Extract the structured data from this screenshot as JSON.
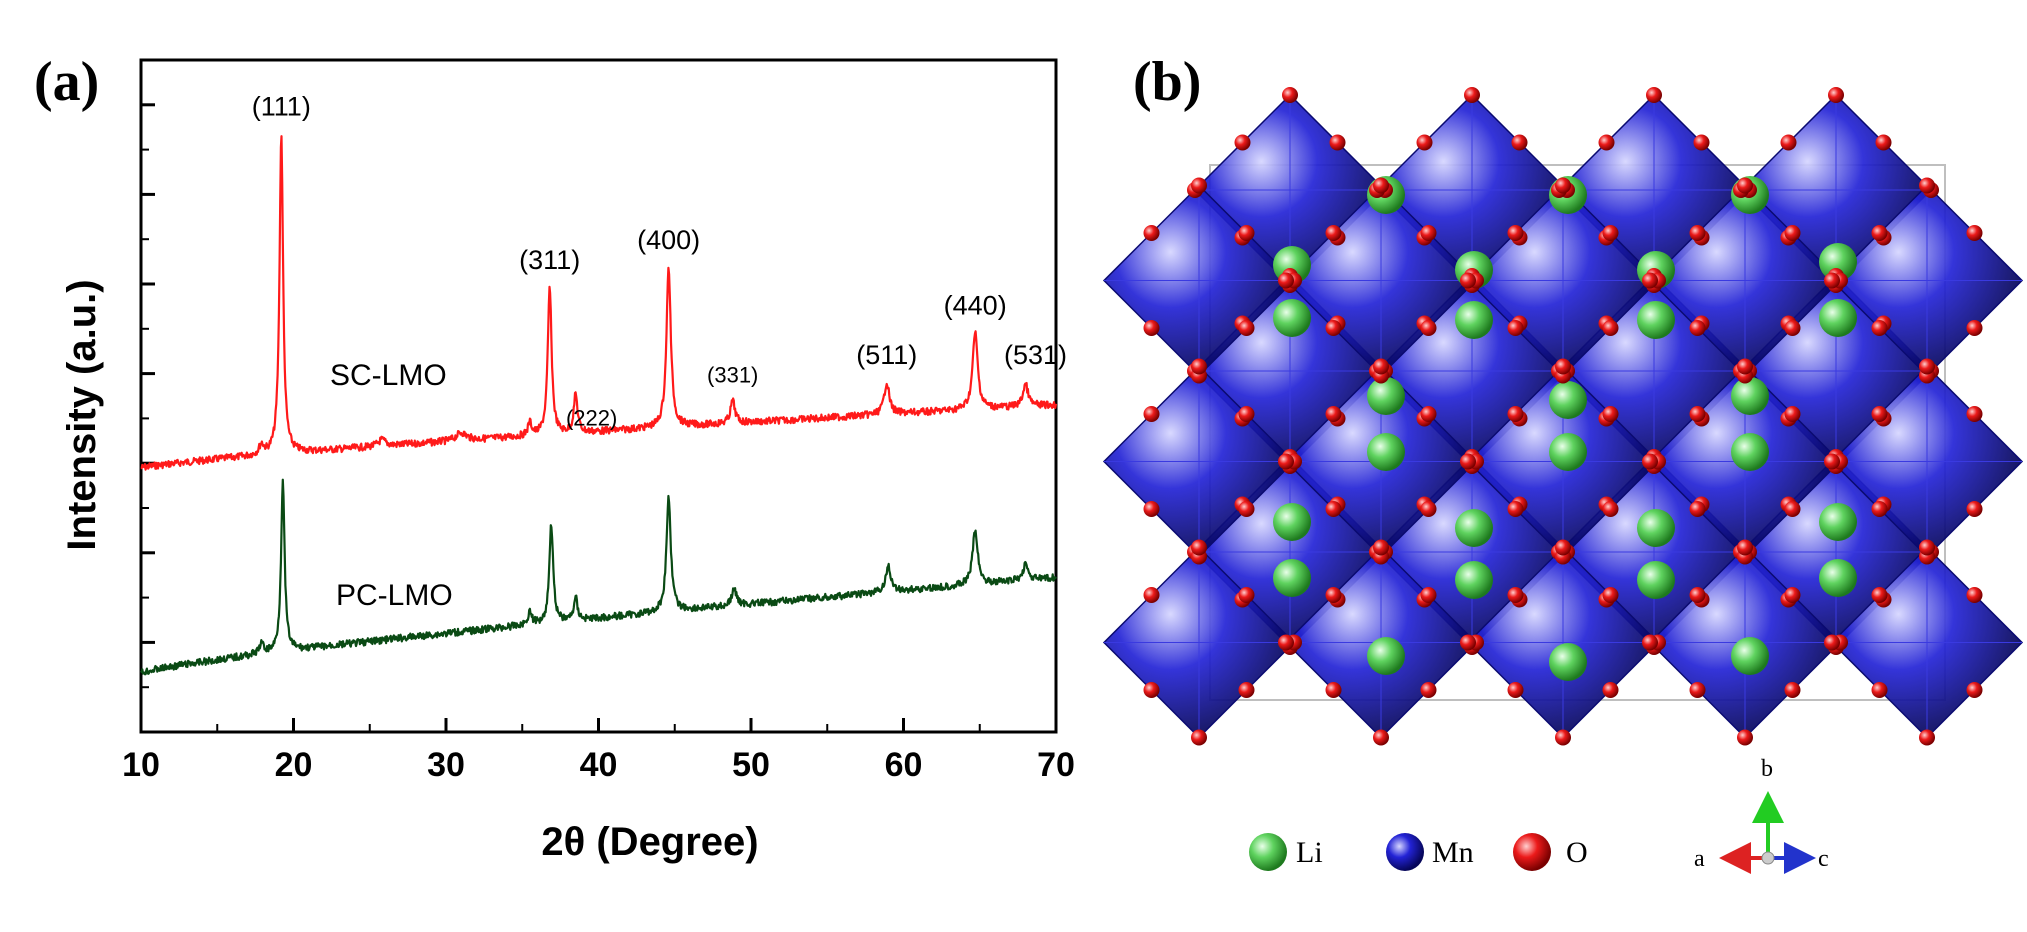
{
  "panels": {
    "a": "(a)",
    "b": "(b)"
  },
  "chart_data": {
    "type": "line",
    "title": "",
    "xlabel": "2θ (Degree)",
    "ylabel": "Intensity (a.u.)",
    "xlim": [
      10,
      70
    ],
    "xticks": [
      10,
      20,
      30,
      40,
      50,
      60,
      70
    ],
    "y_tick_labels_shown": false,
    "series": [
      {
        "name": "SC-LMO",
        "color": "#ff1a1a",
        "baseline_start": 0.0,
        "baseline_end": 0.26,
        "peaks": [
          {
            "x": 17.9,
            "height": 0.03,
            "width": 0.18
          },
          {
            "x": 19.2,
            "height": 1.0,
            "width": 0.14
          },
          {
            "x": 25.8,
            "height": 0.02,
            "width": 0.3
          },
          {
            "x": 31.0,
            "height": 0.025,
            "width": 0.4
          },
          {
            "x": 35.5,
            "height": 0.04,
            "width": 0.15
          },
          {
            "x": 36.8,
            "height": 0.46,
            "width": 0.15
          },
          {
            "x": 38.5,
            "height": 0.12,
            "width": 0.15
          },
          {
            "x": 44.6,
            "height": 0.5,
            "width": 0.17
          },
          {
            "x": 48.8,
            "height": 0.07,
            "width": 0.18
          },
          {
            "x": 58.9,
            "height": 0.1,
            "width": 0.2
          },
          {
            "x": 64.7,
            "height": 0.24,
            "width": 0.2
          },
          {
            "x": 68.0,
            "height": 0.07,
            "width": 0.2
          }
        ]
      },
      {
        "name": "PC-LMO",
        "color": "#0a4a14",
        "baseline_start": 0.0,
        "baseline_end": 0.29,
        "peaks": [
          {
            "x": 17.9,
            "height": 0.03,
            "width": 0.18
          },
          {
            "x": 19.3,
            "height": 0.53,
            "width": 0.14
          },
          {
            "x": 35.5,
            "height": 0.04,
            "width": 0.15
          },
          {
            "x": 36.9,
            "height": 0.31,
            "width": 0.15
          },
          {
            "x": 38.5,
            "height": 0.07,
            "width": 0.15
          },
          {
            "x": 44.6,
            "height": 0.36,
            "width": 0.17
          },
          {
            "x": 48.9,
            "height": 0.05,
            "width": 0.2
          },
          {
            "x": 59.0,
            "height": 0.08,
            "width": 0.2
          },
          {
            "x": 64.7,
            "height": 0.17,
            "width": 0.2
          },
          {
            "x": 68.0,
            "height": 0.05,
            "width": 0.2
          }
        ]
      }
    ],
    "peak_labels": [
      {
        "text": "(111)",
        "x": 19.2,
        "small": false
      },
      {
        "text": "(311)",
        "x": 36.8,
        "small": false
      },
      {
        "text": "(222)",
        "x": 38.5,
        "small": true
      },
      {
        "text": "(400)",
        "x": 44.6,
        "small": false
      },
      {
        "text": "(331)",
        "x": 48.8,
        "small": true
      },
      {
        "text": "(511)",
        "x": 58.9,
        "small": false
      },
      {
        "text": "(440)",
        "x": 64.7,
        "small": false
      },
      {
        "text": "(531)",
        "x": 68.0,
        "small": false
      }
    ]
  },
  "structure": {
    "legend": [
      {
        "label": "Li",
        "color": "#3fbf3f"
      },
      {
        "label": "Mn",
        "color": "#1a1acc"
      },
      {
        "label": "O",
        "color": "#e01010"
      }
    ],
    "axes_indicator": {
      "up": "b",
      "left": "a",
      "right": "c"
    }
  }
}
